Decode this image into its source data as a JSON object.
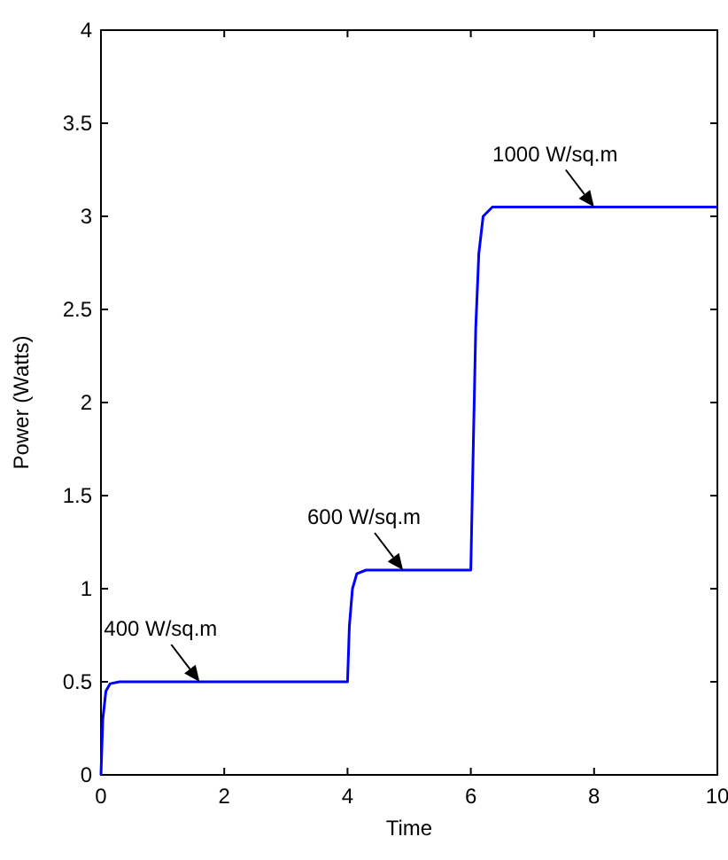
{
  "chart_data": {
    "type": "line",
    "xlabel": "Time",
    "ylabel": "Power (Watts)",
    "xlim": [
      0,
      10
    ],
    "ylim": [
      0,
      4
    ],
    "xticks": [
      0,
      2,
      4,
      6,
      8,
      10
    ],
    "yticks": [
      0,
      0.5,
      1,
      1.5,
      2,
      2.5,
      3,
      3.5,
      4
    ],
    "grid": false,
    "series": [
      {
        "color": "#0000ff",
        "x": [
          0,
          0.03,
          0.08,
          0.15,
          0.3,
          4,
          4.03,
          4.08,
          4.15,
          4.3,
          6,
          6.03,
          6.08,
          6.13,
          6.2,
          6.35,
          10
        ],
        "values": [
          0,
          0.3,
          0.45,
          0.49,
          0.5,
          0.5,
          0.8,
          1.0,
          1.08,
          1.1,
          1.1,
          1.6,
          2.4,
          2.8,
          3.0,
          3.05,
          3.05
        ]
      }
    ],
    "annotations": [
      {
        "text": "400 W/sq.m",
        "x": 1.6,
        "y": 0.5
      },
      {
        "text": "600 W/sq.m",
        "x": 4.9,
        "y": 1.1
      },
      {
        "text": "1000 W/sq.m",
        "x": 8,
        "y": 3.05
      }
    ]
  }
}
